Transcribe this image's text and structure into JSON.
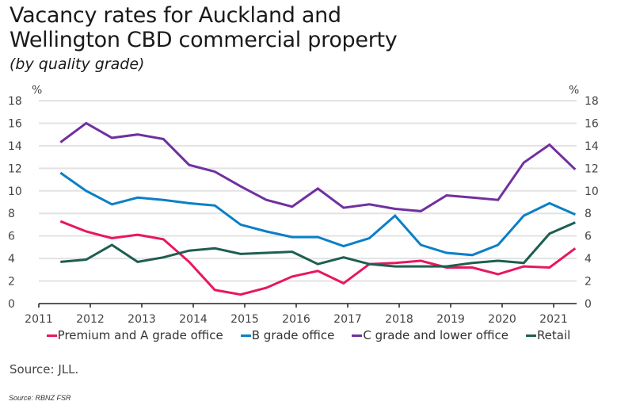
{
  "chart_data": {
    "type": "line",
    "title": "Vacancy rates for Auckland and Wellington CBD commercial property",
    "title_lines": [
      "Vacancy rates for Auckland and",
      "Wellington CBD commercial property"
    ],
    "subtitle": "(by quality grade)",
    "xlabel": "",
    "ylabel_left": "%",
    "ylabel_right": "%",
    "ylim": [
      0,
      18
    ],
    "yticks": [
      0,
      2,
      4,
      6,
      8,
      10,
      12,
      14,
      16,
      18
    ],
    "xlim": [
      2011,
      2021.45
    ],
    "xticks": [
      2011,
      2012,
      2013,
      2014,
      2015,
      2016,
      2017,
      2018,
      2019,
      2020,
      2021
    ],
    "xtick_labels": [
      "2011",
      "2012",
      "2013",
      "2014",
      "2015",
      "2016",
      "2017",
      "2018",
      "2019",
      "2020",
      "2021"
    ],
    "grid": true,
    "legend_position": "bottom",
    "x": [
      2011.42,
      2011.92,
      2012.42,
      2012.92,
      2013.42,
      2013.92,
      2014.42,
      2014.92,
      2015.42,
      2015.92,
      2016.42,
      2016.92,
      2017.42,
      2017.92,
      2018.42,
      2018.92,
      2019.42,
      2019.92,
      2020.42,
      2020.92,
      2021.42
    ],
    "series": [
      {
        "name": "Premium and A grade office",
        "color": "#e8175d",
        "values": [
          7.3,
          6.4,
          5.8,
          6.1,
          5.7,
          3.7,
          1.2,
          0.8,
          1.4,
          2.4,
          2.9,
          1.8,
          3.5,
          3.6,
          3.8,
          3.2,
          3.2,
          2.6,
          3.3,
          3.2,
          4.9
        ]
      },
      {
        "name": "B grade office",
        "color": "#0b7fc7",
        "values": [
          11.6,
          10.0,
          8.8,
          9.4,
          9.2,
          8.9,
          8.7,
          7.0,
          6.4,
          5.9,
          5.9,
          5.1,
          5.8,
          7.8,
          5.2,
          4.5,
          4.3,
          5.2,
          7.8,
          8.9,
          7.9
        ]
      },
      {
        "name": "C grade and lower office",
        "color": "#7030a0",
        "values": [
          14.3,
          16.0,
          14.7,
          15.0,
          14.6,
          12.3,
          11.7,
          10.4,
          9.2,
          8.6,
          10.2,
          8.5,
          8.8,
          8.4,
          8.2,
          9.6,
          9.4,
          9.2,
          12.5,
          14.1,
          11.9
        ]
      },
      {
        "name": "Retail",
        "color": "#1e5e50",
        "values": [
          3.7,
          3.9,
          5.2,
          3.7,
          4.1,
          4.7,
          4.9,
          4.4,
          4.5,
          4.6,
          3.5,
          4.1,
          3.5,
          3.3,
          3.3,
          3.3,
          3.6,
          3.8,
          3.6,
          6.2,
          7.2
        ]
      }
    ],
    "source": "Source: JLL.",
    "footnote": "Source: RBNZ FSR"
  }
}
